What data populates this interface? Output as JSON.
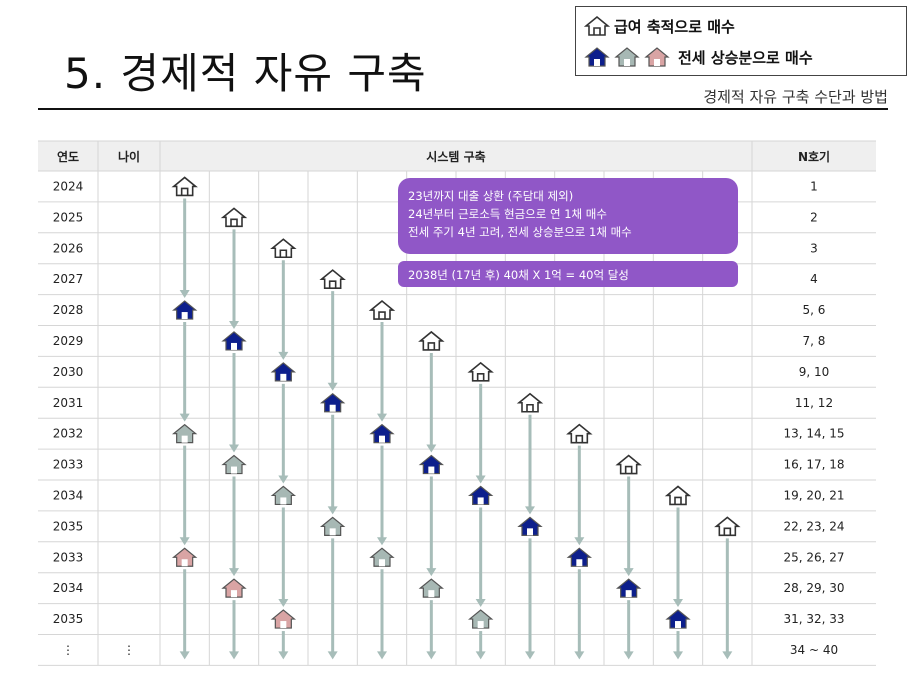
{
  "title": "5. 경제적 자유 구축",
  "subtitle": "경제적 자유 구축 수단과 방법",
  "legend": {
    "salary_label": "급여 축적으로 매수",
    "jeonse_label": "전세 상승분으로 매수"
  },
  "table": {
    "headers": {
      "year": "연도",
      "age": "나이",
      "system": "시스템 구축",
      "count": "N호기"
    },
    "years": [
      "2024",
      "2025",
      "2026",
      "2027",
      "2028",
      "2029",
      "2030",
      "2031",
      "2032",
      "2033",
      "2034",
      "2035",
      "2033",
      "2034",
      "2035",
      "⋮"
    ],
    "age_last": "⋮",
    "counts": [
      "1",
      "2",
      "3",
      "4",
      "5, 6",
      "7, 8",
      "9, 10",
      "11, 12",
      "13, 14, 15",
      "16, 17, 18",
      "19, 20, 21",
      "22, 23, 24",
      "25, 26, 27",
      "28, 29, 30",
      "31, 32, 33",
      "34 ~ 40"
    ]
  },
  "notes": {
    "box1": [
      "23년까지 대출 상환 (주담대 제외)",
      "24년부터 근로소득 현금으로 연 1채 매수",
      "전세 주기 4년 고려, 전세 상승분으로 1채 매수"
    ],
    "box2": "2038년 (17년  후) 40채 X 1억 = 40억 달성"
  },
  "colors": {
    "house_outline": "#ffffff",
    "house_navy": "#0d1f8c",
    "house_gray": "#a7b8b4",
    "house_pink": "#d9a4a4",
    "arrow": "#a7bdb9",
    "note_bg": "#9057c7"
  },
  "houses": {
    "lanes_start": [
      0,
      1,
      2,
      3,
      4,
      5,
      6,
      7,
      8,
      9,
      10,
      11
    ],
    "pattern": [
      "outline",
      "navy",
      "gray",
      "pink"
    ],
    "icon_names": [
      "house-outline-icon",
      "house-navy-icon",
      "house-gray-icon",
      "house-pink-icon"
    ]
  }
}
